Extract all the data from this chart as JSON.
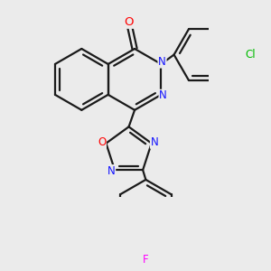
{
  "bg": "#ebebeb",
  "bond_color": "#1a1a1a",
  "bond_lw": 1.6,
  "atom_colors": {
    "N": "#1414ff",
    "O": "#ff0000",
    "Cl": "#00bb00",
    "F": "#ff00ff"
  },
  "fs": 8.5,
  "fig_w": 3.0,
  "fig_h": 3.0,
  "dpi": 100
}
